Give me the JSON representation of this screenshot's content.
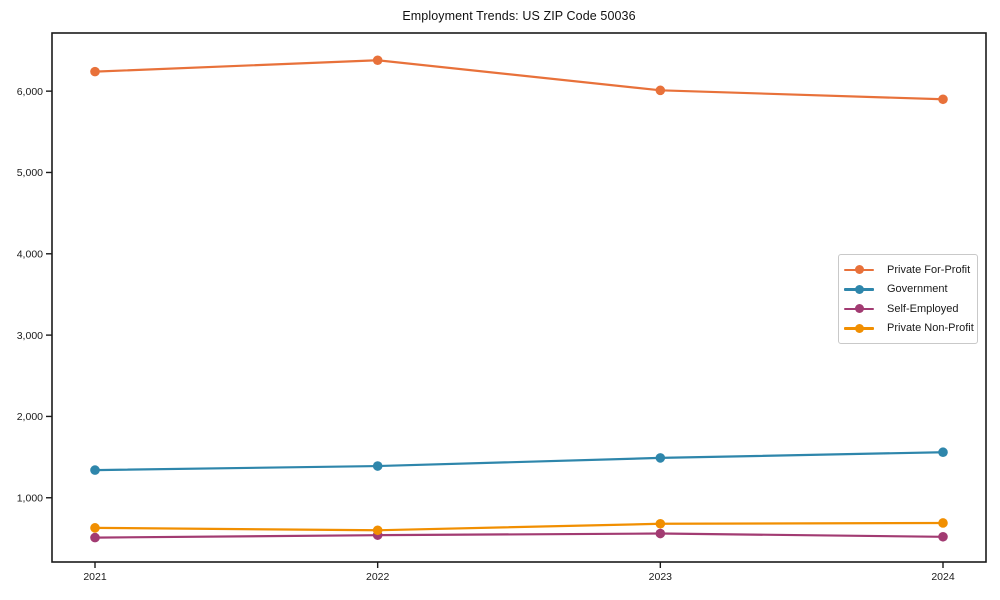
{
  "chart_data": {
    "type": "line",
    "title": "Employment Trends: US ZIP Code 50036",
    "xlabel": "",
    "ylabel": "",
    "categories": [
      "2021",
      "2022",
      "2023",
      "2024"
    ],
    "x": [
      2021,
      2022,
      2023,
      2024
    ],
    "series": [
      {
        "name": "Private For-Profit",
        "color": "#e8713a",
        "values": [
          6240,
          6380,
          6010,
          5900
        ]
      },
      {
        "name": "Government",
        "color": "#2e86ab",
        "values": [
          1340,
          1390,
          1490,
          1560
        ]
      },
      {
        "name": "Self-Employed",
        "color": "#a23b72",
        "values": [
          510,
          540,
          560,
          520
        ]
      },
      {
        "name": "Private Non-Profit",
        "color": "#f18f01",
        "values": [
          630,
          600,
          680,
          690
        ]
      }
    ],
    "ylim": [
      210,
      6715
    ],
    "yticks": [
      1000,
      2000,
      3000,
      4000,
      5000,
      6000
    ],
    "ytick_labels": [
      "1,000",
      "2,000",
      "3,000",
      "4,000",
      "5,000",
      "6,000"
    ],
    "grid": false,
    "legend_position": "center right",
    "marker": "circle"
  }
}
